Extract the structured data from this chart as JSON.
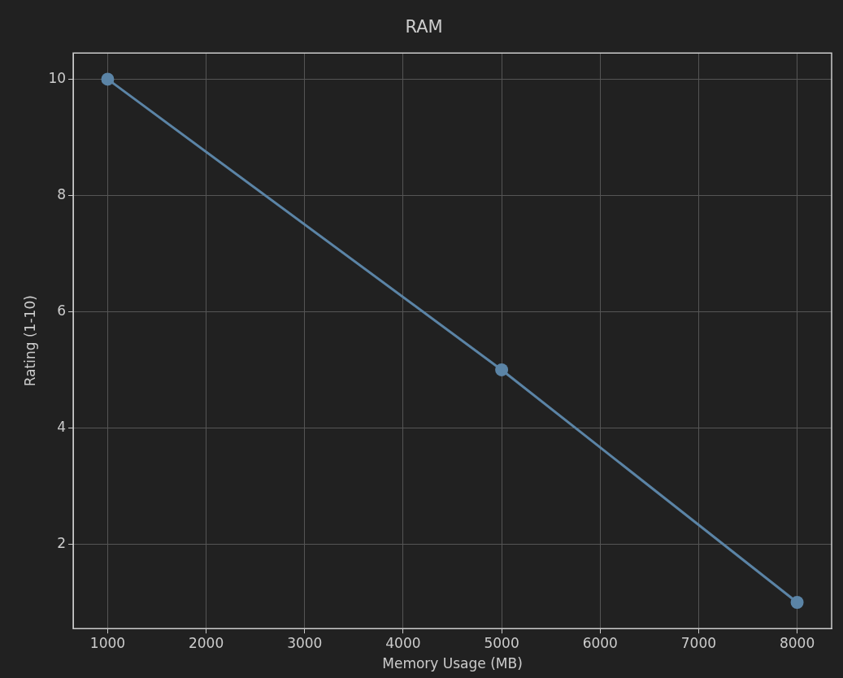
{
  "chart_data": {
    "type": "line",
    "title": "RAM",
    "xlabel": "Memory Usage (MB)",
    "ylabel": "Rating (1-10)",
    "x": [
      1000,
      5000,
      8000
    ],
    "series": [
      {
        "color": "#5b84a6",
        "values": [
          10,
          5,
          1
        ]
      }
    ],
    "xlim": [
      650,
      8350
    ],
    "xticks": [
      1000,
      2000,
      3000,
      4000,
      5000,
      6000,
      7000,
      8000
    ],
    "ylim": [
      0.55,
      10.45
    ],
    "yticks": [
      2,
      4,
      6,
      8,
      10
    ],
    "grid": true,
    "legend": false,
    "marker": "circle",
    "line_style": "solid"
  }
}
